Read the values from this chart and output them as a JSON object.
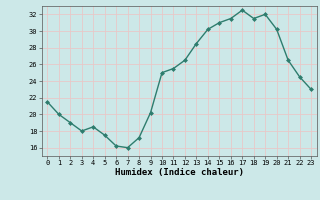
{
  "x": [
    0,
    1,
    2,
    3,
    4,
    5,
    6,
    7,
    8,
    9,
    10,
    11,
    12,
    13,
    14,
    15,
    16,
    17,
    18,
    19,
    20,
    21,
    22,
    23
  ],
  "y": [
    21.5,
    20.0,
    19.0,
    18.0,
    18.5,
    17.5,
    16.2,
    16.0,
    17.2,
    20.2,
    25.0,
    25.5,
    26.5,
    28.5,
    30.2,
    31.0,
    31.5,
    32.5,
    31.5,
    32.0,
    30.2,
    26.5,
    24.5,
    23.0
  ],
  "line_color": "#2e7d6e",
  "marker": "D",
  "marker_size": 2.0,
  "background_color": "#cce8e8",
  "grid_color": "#e8c8c8",
  "xlabel": "Humidex (Indice chaleur)",
  "ylim": [
    15,
    33
  ],
  "xlim": [
    -0.5,
    23.5
  ],
  "yticks": [
    16,
    18,
    20,
    22,
    24,
    26,
    28,
    30,
    32
  ],
  "xticks": [
    0,
    1,
    2,
    3,
    4,
    5,
    6,
    7,
    8,
    9,
    10,
    11,
    12,
    13,
    14,
    15,
    16,
    17,
    18,
    19,
    20,
    21,
    22,
    23
  ],
  "xlabel_fontsize": 6.5,
  "tick_fontsize": 5.0,
  "linewidth": 1.0
}
